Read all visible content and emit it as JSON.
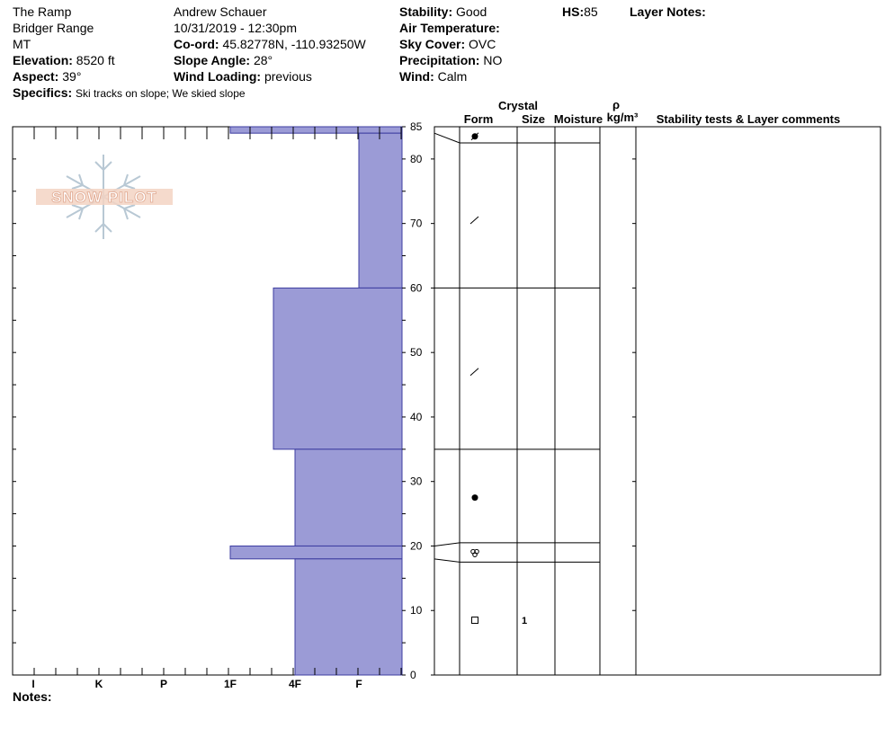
{
  "header": {
    "location": "The Ramp",
    "range": "Bridger Range",
    "state": "MT",
    "elevation_label": "Elevation:",
    "elevation": "8520 ft",
    "aspect_label": "Aspect:",
    "aspect": "39°",
    "specifics_label": "Specifics:",
    "specifics": "Ski tracks on slope; We skied slope",
    "observer": "Andrew Schauer",
    "datetime": "10/31/2019 - 12:30pm",
    "coord_label": "Co-ord:",
    "coord": "45.82778N, -110.93250W",
    "slope_label": "Slope Angle:",
    "slope": "28°",
    "wind_loading_label": "Wind Loading:",
    "wind_loading": "previous",
    "stability_label": "Stability:",
    "stability": "Good",
    "air_temp_label": "Air Temperature:",
    "air_temp": "",
    "sky_label": "Sky Cover:",
    "sky": "OVC",
    "precip_label": "Precipitation:",
    "precip": "NO",
    "wind_label": "Wind:",
    "wind": "Calm",
    "hs_label": "HS:",
    "hs": "85",
    "layer_notes_label": "Layer Notes:",
    "notes_label": "Notes:"
  },
  "logo": {
    "text": "SNOW PILOT"
  },
  "columns": {
    "crystal": "Crystal",
    "form": "Form",
    "size": "Size",
    "moisture": "Moisture",
    "rho": "ρ",
    "density_unit": "kg/m³",
    "comments": "Stability tests & Layer comments"
  },
  "chart_data": {
    "type": "bar",
    "title": "",
    "xlabel": "",
    "ylabel": "",
    "hardness_scale": [
      "I",
      "K",
      "P",
      "1F",
      "4F",
      "F"
    ],
    "hardness_axis": "reversed; F at right edge, I at left",
    "ylim": [
      0,
      85
    ],
    "y_ticks": [
      0,
      10,
      20,
      30,
      40,
      50,
      60,
      70,
      80,
      85
    ],
    "layers": [
      {
        "top": 85,
        "bottom": 84,
        "hardness": "1F"
      },
      {
        "top": 84,
        "bottom": 60,
        "hardness": "F+"
      },
      {
        "top": 60,
        "bottom": 35,
        "hardness": "4F-"
      },
      {
        "top": 35,
        "bottom": 20,
        "hardness": "4F"
      },
      {
        "top": 20,
        "bottom": 18,
        "hardness": "1F"
      },
      {
        "top": 18,
        "bottom": 0,
        "hardness": "4F"
      }
    ],
    "layer_boundaries_right": [
      85,
      82.5,
      60,
      35,
      20.5,
      17.5
    ],
    "crystal_forms": [
      {
        "depth": 83.5,
        "form": "rounded-faceted-icon"
      },
      {
        "depth": 70.5,
        "form": "decomposing-icon"
      },
      {
        "depth": 47,
        "form": "decomposing-icon"
      },
      {
        "depth": 27.5,
        "form": "rounded-grain-icon"
      },
      {
        "depth": 19,
        "form": "melt-freeze-icon"
      },
      {
        "depth": 8.5,
        "form": "faceted-icon",
        "size": "1"
      }
    ],
    "colors": {
      "fill": "#9b9bd6",
      "stroke": "#3c3ca0"
    }
  }
}
